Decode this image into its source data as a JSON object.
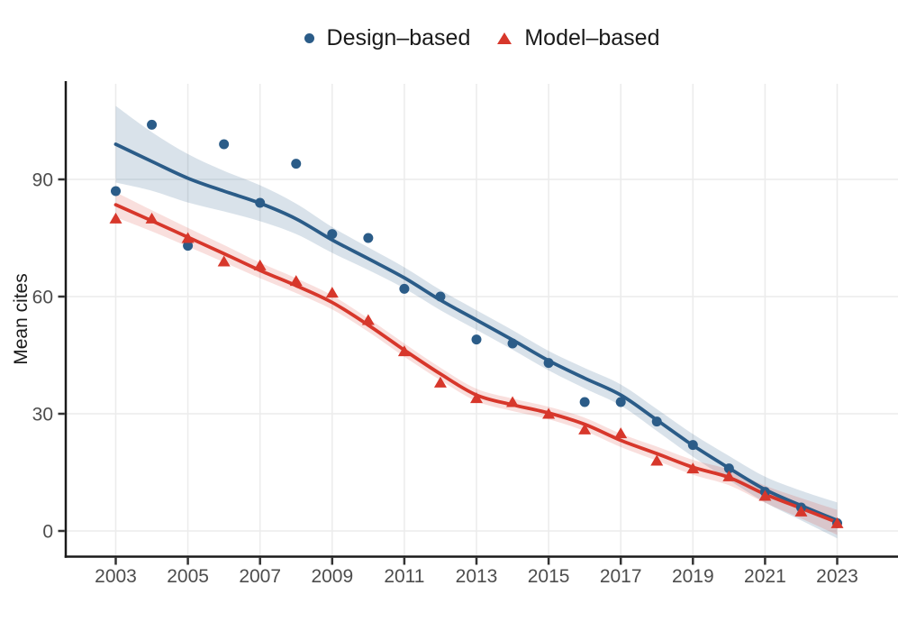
{
  "chart_data": {
    "type": "scatter",
    "title": "",
    "xlabel": "",
    "ylabel": "Mean cites",
    "x_ticks": [
      2003,
      2005,
      2007,
      2009,
      2011,
      2013,
      2015,
      2017,
      2019,
      2021,
      2023
    ],
    "y_ticks": [
      0,
      30,
      60,
      90
    ],
    "xlim": [
      2001.6,
      2024.7
    ],
    "ylim": [
      -6.6,
      114.5
    ],
    "grid": "major-only",
    "legend_position": "top-center",
    "background": "#ffffff",
    "gridline_color": "#ececec",
    "axis_line_color": "#1a1a1a",
    "tick_label_color": "#4d4d4d",
    "x": [
      2003,
      2004,
      2005,
      2006,
      2007,
      2008,
      2009,
      2010,
      2011,
      2012,
      2013,
      2014,
      2015,
      2016,
      2017,
      2018,
      2019,
      2020,
      2021,
      2022,
      2023
    ],
    "series": [
      {
        "name": "Design–based",
        "marker": "circle",
        "color": "#2b5c88",
        "band_opacity": 0.18,
        "values": [
          87,
          104,
          73,
          99,
          84,
          94,
          76,
          75,
          62,
          60,
          49,
          48,
          43,
          33,
          33,
          28,
          22,
          16,
          10,
          6,
          2
        ],
        "smooth": [
          99,
          94.6,
          90.3,
          87,
          83.9,
          79.9,
          74.5,
          69.7,
          64.8,
          59.1,
          54,
          48.9,
          43.6,
          39.1,
          34.8,
          28.4,
          21.9,
          16.1,
          10.6,
          6.5,
          2.7
        ],
        "ci_upper": [
          108.8,
          102.1,
          96.5,
          92.2,
          88.5,
          83.8,
          77.8,
          72.6,
          67.5,
          61.7,
          56.5,
          51.4,
          46.1,
          41.7,
          37.5,
          31.2,
          24.8,
          19.2,
          13.9,
          10.3,
          7.3
        ],
        "ci_lower": [
          89.2,
          87.1,
          84.1,
          81.8,
          79.3,
          76,
          71.2,
          66.8,
          62.1,
          56.5,
          51.5,
          46.4,
          41.1,
          36.5,
          32.1,
          25.6,
          19,
          13,
          7.3,
          2.7,
          -1.9
        ]
      },
      {
        "name": "Model–based",
        "marker": "triangle",
        "color": "#d7372b",
        "band_opacity": 0.16,
        "values": [
          80,
          80,
          75,
          69,
          68,
          64,
          61,
          54,
          46,
          38,
          34,
          33,
          30,
          26,
          25,
          18,
          16,
          14,
          9,
          5,
          2
        ],
        "smooth": [
          83.5,
          79.4,
          75.2,
          71,
          66.7,
          62.8,
          58.5,
          52.7,
          46.3,
          40.2,
          34.8,
          32.3,
          30.2,
          27.3,
          23.2,
          19.8,
          16.3,
          13.7,
          9.4,
          5.8,
          2.2
        ],
        "ci_upper": [
          86.7,
          82.1,
          77.6,
          73.2,
          68.7,
          64.7,
          60.3,
          54.4,
          48,
          41.8,
          36.4,
          33.9,
          31.8,
          29,
          24.9,
          21.6,
          18.2,
          15.7,
          11.6,
          8.4,
          5.4
        ],
        "ci_lower": [
          80.3,
          76.7,
          72.8,
          68.8,
          64.7,
          60.9,
          56.7,
          51,
          44.6,
          38.6,
          33.2,
          30.7,
          28.6,
          25.6,
          21.5,
          18,
          14.4,
          11.7,
          7.2,
          3.2,
          -1
        ]
      }
    ]
  },
  "legend": {
    "items": [
      {
        "label": "Design–based"
      },
      {
        "label": "Model–based"
      }
    ]
  }
}
